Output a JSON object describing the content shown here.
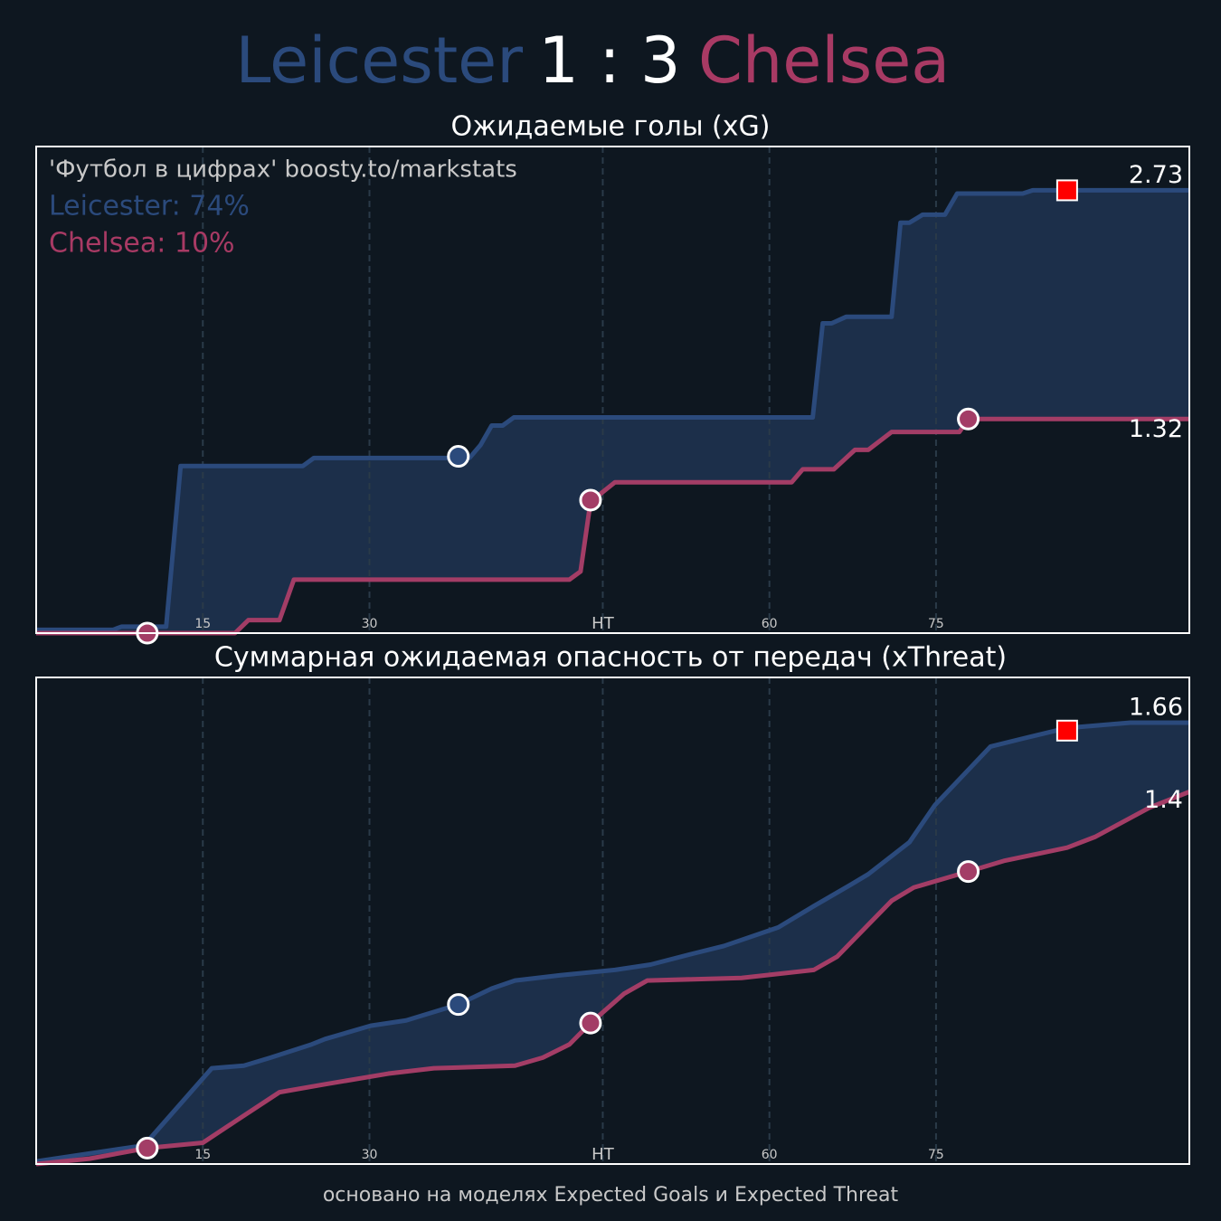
{
  "header": {
    "home": "Leicester",
    "score": "1 : 3",
    "away": "Chelsea",
    "home_color": "#2b4a7c",
    "away_color": "#a83a64"
  },
  "footer": "основано на моделях Expected Goals и Expected Threat",
  "chart_data": [
    {
      "type": "line",
      "title": "Ожидаемые голы (xG)",
      "annotations": [
        {
          "text": "'Футбол в цифрах' boosty.to/markstats",
          "color": "#c8c8c8"
        },
        {
          "text": "Leicester: 74%",
          "color": "#2b4a7c"
        },
        {
          "text": "Chelsea: 10%",
          "color": "#a83a64"
        }
      ],
      "xlim": [
        0,
        103.8
      ],
      "xticks": [
        15,
        30,
        {
          "value": 51,
          "label": "HT"
        },
        {
          "value": 66,
          "label": "60"
        },
        {
          "value": 81,
          "label": "75"
        }
      ],
      "ylim": [
        0,
        3.0
      ],
      "grid": true,
      "fill_between": "#1c2f4a",
      "series": [
        {
          "name": "Leicester",
          "color": "#2b4a7c",
          "x": [
            0,
            6.9,
            7.7,
            11.7,
            13,
            24,
            25,
            39,
            40,
            41,
            42,
            43,
            69.9,
            70.8,
            71.6,
            72.9,
            77,
            77.8,
            78.6,
            79.8,
            81.8,
            82.9,
            88.8,
            89.7,
            103.8
          ],
          "values": [
            0.02,
            0.02,
            0.04,
            0.04,
            1.03,
            1.03,
            1.08,
            1.08,
            1.16,
            1.28,
            1.28,
            1.33,
            1.33,
            1.91,
            1.91,
            1.95,
            1.95,
            2.53,
            2.53,
            2.58,
            2.58,
            2.71,
            2.71,
            2.73,
            2.73
          ]
        },
        {
          "name": "Chelsea",
          "color": "#a33d66",
          "x": [
            0,
            17.9,
            19.1,
            21.9,
            23.2,
            48,
            49,
            49.9,
            52.1,
            68,
            69,
            71.8,
            73.7,
            74.9,
            77,
            83.1,
            83.9,
            103.8
          ],
          "values": [
            0,
            0,
            0.08,
            0.08,
            0.33,
            0.33,
            0.38,
            0.81,
            0.93,
            0.93,
            1.01,
            1.01,
            1.13,
            1.13,
            1.24,
            1.24,
            1.32,
            1.32
          ]
        }
      ],
      "markers": [
        {
          "x": 38,
          "y": 1.09,
          "color": "#2b4a7c",
          "shape": "circle"
        },
        {
          "x": 10,
          "y": 0,
          "color": "#a33d66",
          "shape": "circle"
        },
        {
          "x": 49.9,
          "y": 0.82,
          "color": "#a33d66",
          "shape": "circle"
        },
        {
          "x": 83.9,
          "y": 1.32,
          "color": "#a33d66",
          "shape": "circle"
        },
        {
          "x": 92.8,
          "y": 2.73,
          "color": "#ff0000",
          "shape": "square"
        }
      ]
    },
    {
      "type": "line",
      "title": "Суммарная ожидаемая опасность от передач (xThreat)",
      "xlim": [
        0,
        103.8
      ],
      "xticks": [
        15,
        30,
        {
          "value": 51,
          "label": "HT"
        },
        {
          "value": 66,
          "label": "60"
        },
        {
          "value": 81,
          "label": "75"
        }
      ],
      "ylim": [
        0,
        1.83
      ],
      "grid": true,
      "fill_between": "#1c2f4a",
      "series": [
        {
          "name": "Leicester",
          "color": "#2b4a7c",
          "x": [
            0,
            9.7,
            15.8,
            18.7,
            21.1,
            24.8,
            26,
            30.1,
            33.3,
            38,
            41,
            43.1,
            47.2,
            52.1,
            55.3,
            59,
            61.9,
            66.8,
            70,
            73.3,
            74.9,
            78.6,
            80.9,
            85.9,
            88.8,
            92.8,
            98.5,
            103.8
          ],
          "values": [
            0.01,
            0.07,
            0.36,
            0.37,
            0.4,
            0.45,
            0.47,
            0.52,
            0.54,
            0.6,
            0.66,
            0.69,
            0.71,
            0.73,
            0.75,
            0.79,
            0.82,
            0.89,
            0.97,
            1.05,
            1.09,
            1.21,
            1.35,
            1.57,
            1.6,
            1.64,
            1.66,
            1.66
          ]
        },
        {
          "name": "Chelsea",
          "color": "#a33d66",
          "x": [
            0,
            4.8,
            10,
            15,
            17.9,
            21.9,
            26,
            31.7,
            35.8,
            43.1,
            45.6,
            48,
            49.9,
            52.9,
            55,
            63.5,
            70,
            72.1,
            77,
            79,
            83.9,
            87.1,
            92.8,
            95.3,
            100.2,
            103.8
          ],
          "values": [
            0,
            0.02,
            0.06,
            0.08,
            0.16,
            0.27,
            0.3,
            0.34,
            0.36,
            0.37,
            0.4,
            0.45,
            0.53,
            0.64,
            0.69,
            0.7,
            0.73,
            0.78,
            0.99,
            1.04,
            1.1,
            1.14,
            1.19,
            1.23,
            1.34,
            1.4
          ]
        }
      ],
      "markers": [
        {
          "x": 38,
          "y": 0.6,
          "color": "#2b4a7c",
          "shape": "circle"
        },
        {
          "x": 10,
          "y": 0.06,
          "color": "#a33d66",
          "shape": "circle"
        },
        {
          "x": 49.9,
          "y": 0.53,
          "color": "#a33d66",
          "shape": "circle"
        },
        {
          "x": 83.9,
          "y": 1.1,
          "color": "#a33d66",
          "shape": "circle"
        },
        {
          "x": 92.8,
          "y": 1.63,
          "color": "#ff0000",
          "shape": "square"
        }
      ]
    }
  ]
}
